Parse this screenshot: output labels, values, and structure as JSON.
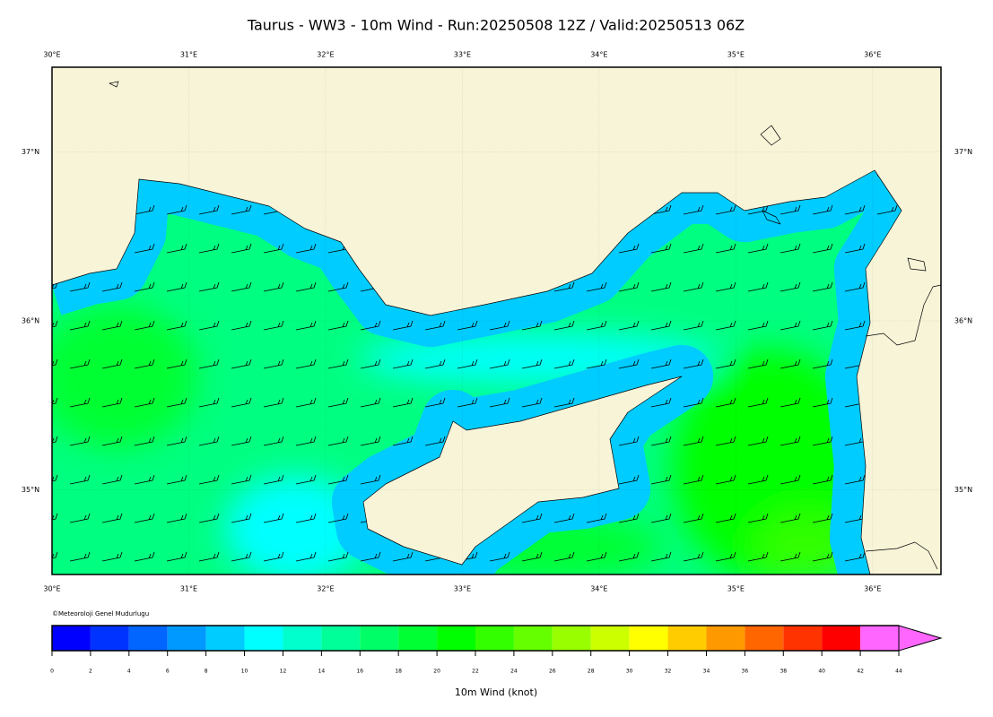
{
  "title": "Taurus - WW3 - 10m Wind - Run:20250508 12Z / Valid:20250513 06Z",
  "map": {
    "xlim": [
      30,
      36.5
    ],
    "ylim": [
      34.5,
      37.5
    ],
    "xticks": [
      {
        "value": 30,
        "label": "30°E"
      },
      {
        "value": 31,
        "label": "31°E"
      },
      {
        "value": 32,
        "label": "32°E"
      },
      {
        "value": 33,
        "label": "33°E"
      },
      {
        "value": 34,
        "label": "34°E"
      },
      {
        "value": 35,
        "label": "35°E"
      },
      {
        "value": 36,
        "label": "36°E"
      }
    ],
    "yticks": [
      {
        "value": 35,
        "label": "35°N"
      },
      {
        "value": 36,
        "label": "36°N"
      },
      {
        "value": 37,
        "label": "37°N"
      }
    ],
    "credit": "©Meteoroloji Genel Mudurlugu"
  },
  "colorbar": {
    "label": "10m Wind (knot)",
    "ticks": [
      0,
      2,
      4,
      6,
      8,
      10,
      12,
      14,
      16,
      18,
      20,
      22,
      24,
      26,
      28,
      30,
      32,
      34,
      36,
      38,
      40,
      42,
      44
    ],
    "colors": [
      "#0000ff",
      "#0033ff",
      "#0066ff",
      "#0099ff",
      "#00ccff",
      "#00ffff",
      "#00ffcc",
      "#00ff99",
      "#00ff66",
      "#00ff33",
      "#00ff00",
      "#33ff00",
      "#66ff00",
      "#99ff00",
      "#ccff00",
      "#ffff00",
      "#ffcc00",
      "#ff9900",
      "#ff6600",
      "#ff3300",
      "#ff0000",
      "#ff66ff"
    ]
  }
}
